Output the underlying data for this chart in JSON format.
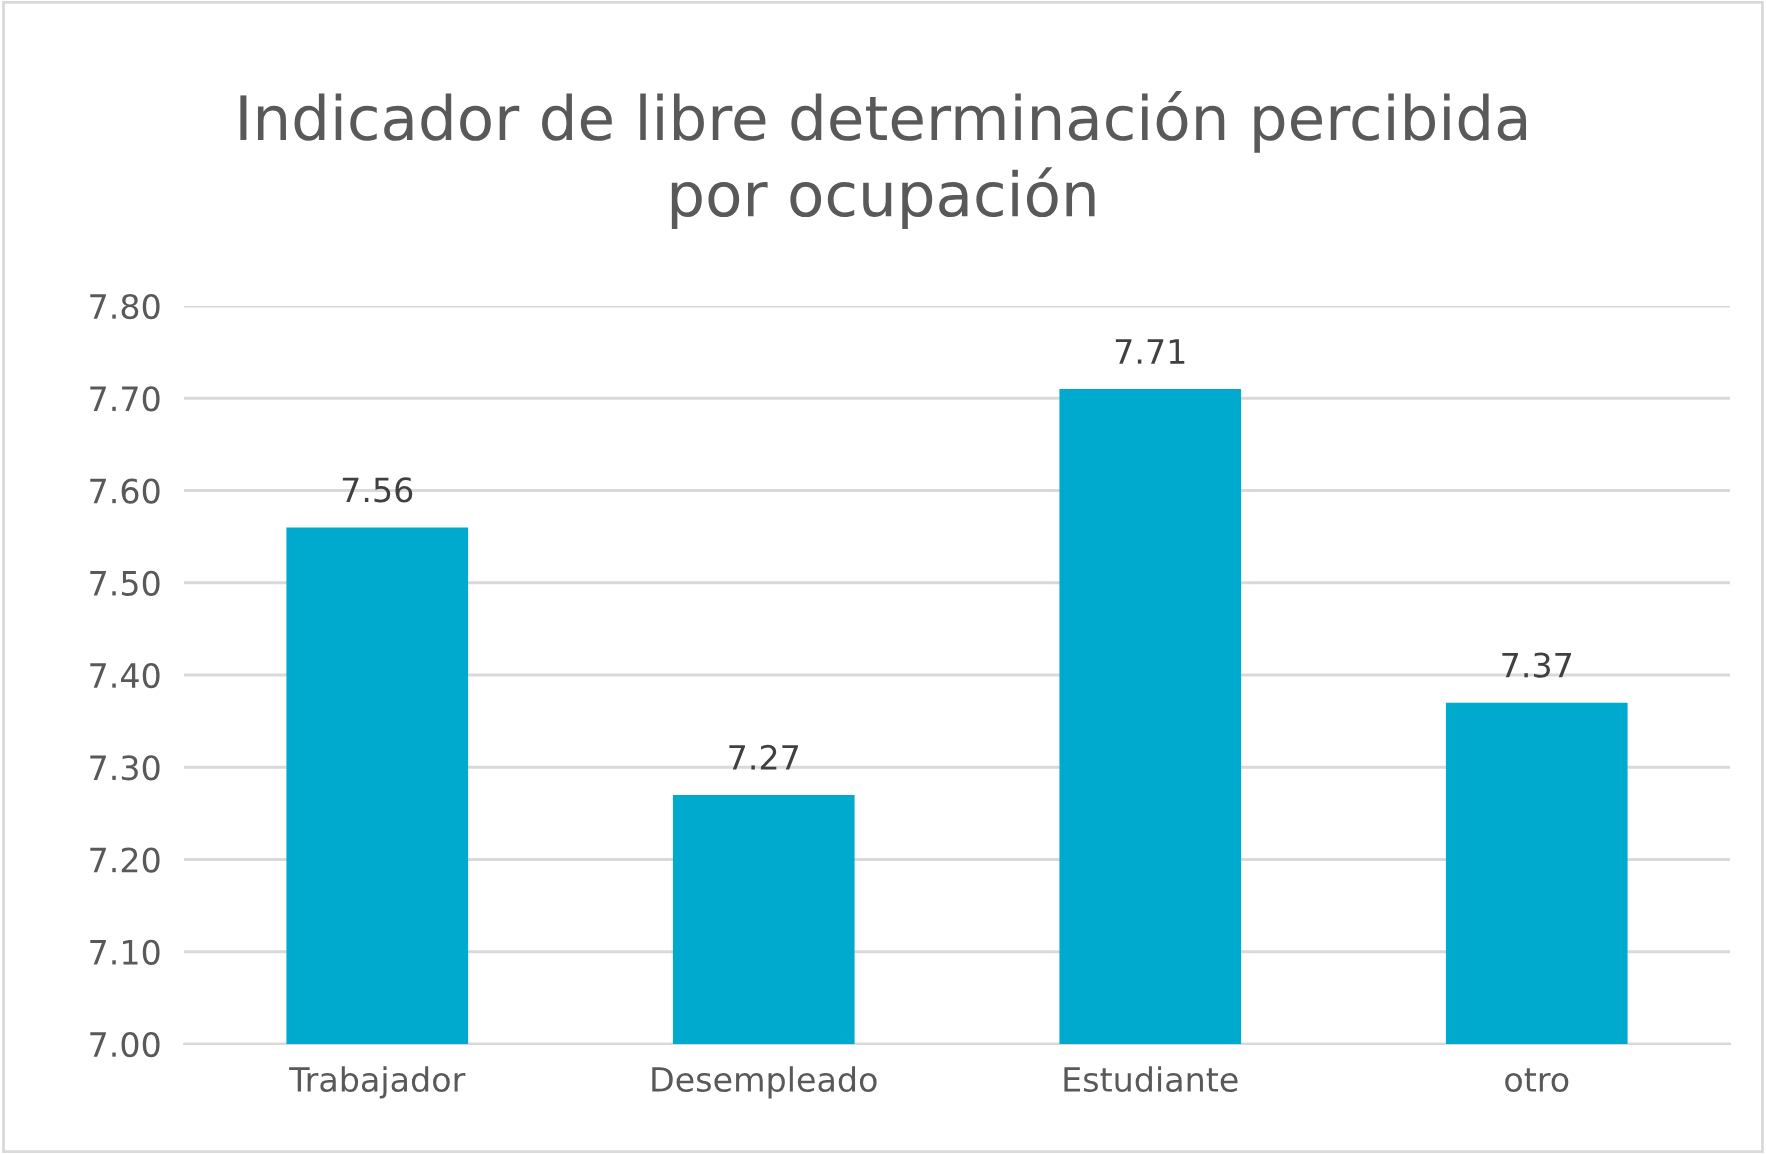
{
  "chart_data": {
    "type": "bar",
    "title": "Indicador de libre determinación percibida\npor ocupación",
    "categories": [
      "Trabajador",
      "Desempleado",
      "Estudiante",
      "otro"
    ],
    "values": [
      7.56,
      7.27,
      7.71,
      7.37
    ],
    "color": "#00a9ce",
    "ylim": [
      7.0,
      7.8
    ],
    "yticks": [
      {
        "value": 7.0,
        "label": "7.00"
      },
      {
        "value": 7.1,
        "label": "7.10"
      },
      {
        "value": 7.2,
        "label": "7.20"
      },
      {
        "value": 7.3,
        "label": "7.30"
      },
      {
        "value": 7.4,
        "label": "7.40"
      },
      {
        "value": 7.5,
        "label": "7.50"
      },
      {
        "value": 7.6,
        "label": "7.60"
      },
      {
        "value": 7.7,
        "label": "7.70"
      },
      {
        "value": 7.8,
        "label": "7.80"
      }
    ],
    "grid": "y",
    "data_labels": true
  }
}
